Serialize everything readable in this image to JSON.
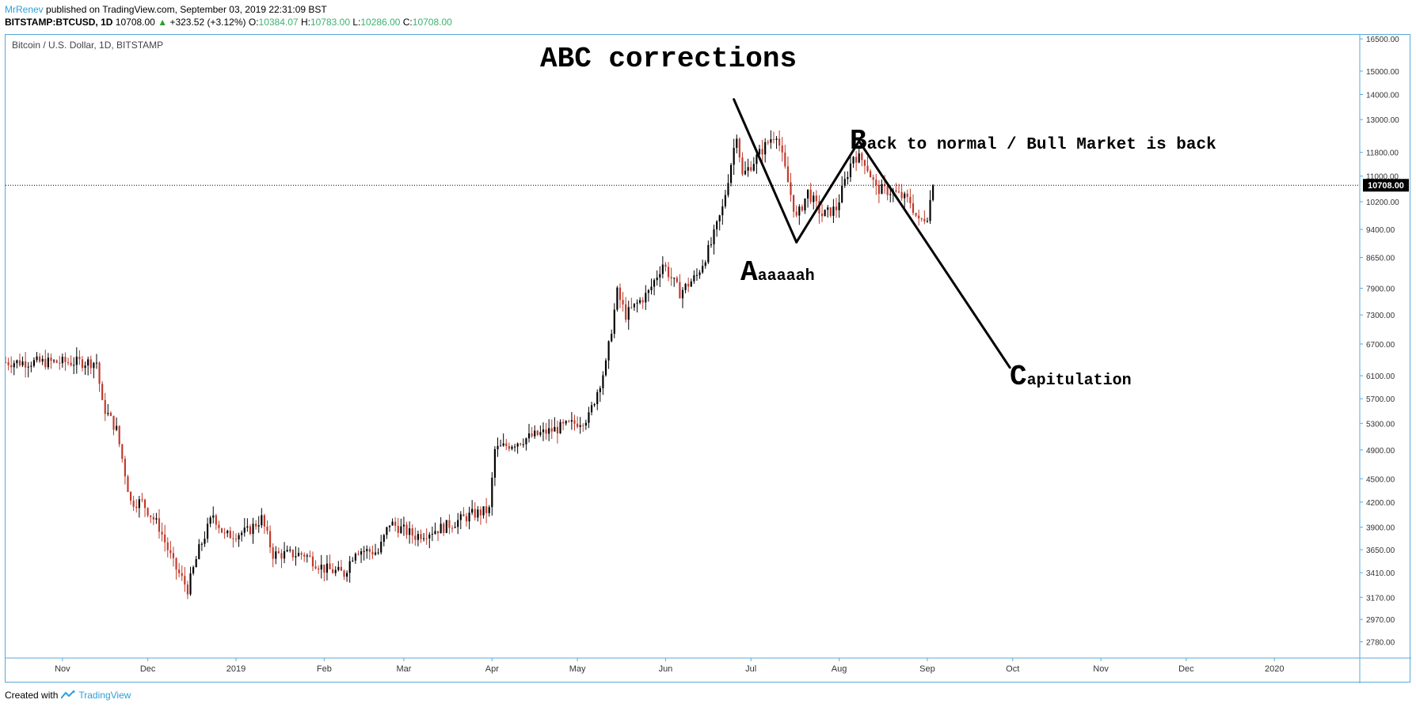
{
  "header": {
    "author": "MrRenev",
    "published": "published on TradingView.com, September 03, 2019 22:31:09 BST",
    "symbol": "BITSTAMP:BTCUSD, 1D",
    "last": "10708.00",
    "arrow": "▲",
    "change": "+323.52 (+3.12%)",
    "o_label": "O:",
    "o": "10384.07",
    "h_label": "H:",
    "h": "10783.00",
    "l_label": "L:",
    "l": "10286.00",
    "c_label": "C:",
    "c": "10708.00"
  },
  "footer": {
    "created": "Created with",
    "brand": "TradingView"
  },
  "colors": {
    "up": "#000000",
    "down": "#c0392b",
    "border": "#5aa9d6",
    "price_tag": "#000000"
  },
  "chart_data": {
    "type": "candlestick",
    "title": "Bitcoin / U.S. Dollar, 1D, BITSTAMP",
    "y_scale": "log",
    "ylim": [
      2650,
      16700
    ],
    "y_ticks": [
      "16500.00",
      "15000.00",
      "14000.00",
      "13000.00",
      "11800.00",
      "11000.00",
      "10200.00",
      "9400.00",
      "8650.00",
      "7900.00",
      "7300.00",
      "6700.00",
      "6100.00",
      "5700.00",
      "5300.00",
      "4900.00",
      "4500.00",
      "4200.00",
      "3900.00",
      "3650.00",
      "3410.00",
      "3170.00",
      "2970.00",
      "2780.00"
    ],
    "x_ticks": [
      "Nov",
      "Dec",
      "2019",
      "Feb",
      "Mar",
      "Apr",
      "May",
      "Jun",
      "Jul",
      "Aug",
      "Sep",
      "Oct",
      "Nov",
      "Dec",
      "2020"
    ],
    "x_range": [
      "2018-10-12",
      "2020-01-31"
    ],
    "current_price": "10708.00",
    "price_path": [
      [
        "2018-10-12",
        6350
      ],
      [
        "2018-11-13",
        6350
      ],
      [
        "2018-11-15",
        5600
      ],
      [
        "2018-11-20",
        5200
      ],
      [
        "2018-11-25",
        4200
      ],
      [
        "2018-11-29",
        4200
      ],
      [
        "2018-12-05",
        3900
      ],
      [
        "2018-12-10",
        3500
      ],
      [
        "2018-12-15",
        3250
      ],
      [
        "2018-12-19",
        3650
      ],
      [
        "2018-12-24",
        4050
      ],
      [
        "2018-12-28",
        3800
      ],
      [
        "2019-01-05",
        3850
      ],
      [
        "2019-01-10",
        4000
      ],
      [
        "2019-01-14",
        3600
      ],
      [
        "2019-01-25",
        3600
      ],
      [
        "2019-02-01",
        3450
      ],
      [
        "2019-02-08",
        3400
      ],
      [
        "2019-02-12",
        3650
      ],
      [
        "2019-02-20",
        3620
      ],
      [
        "2019-02-24",
        3950
      ],
      [
        "2019-03-05",
        3800
      ],
      [
        "2019-03-15",
        3900
      ],
      [
        "2019-03-25",
        4050
      ],
      [
        "2019-03-31",
        4100
      ],
      [
        "2019-04-02",
        4900
      ],
      [
        "2019-04-15",
        5100
      ],
      [
        "2019-04-30",
        5300
      ],
      [
        "2019-05-05",
        5400
      ],
      [
        "2019-05-11",
        6300
      ],
      [
        "2019-05-15",
        7800
      ],
      [
        "2019-05-18",
        7300
      ],
      [
        "2019-05-26",
        7800
      ],
      [
        "2019-05-31",
        8500
      ],
      [
        "2019-06-06",
        7800
      ],
      [
        "2019-06-12",
        8200
      ],
      [
        "2019-06-17",
        9000
      ],
      [
        "2019-06-21",
        10000
      ],
      [
        "2019-06-26",
        12500
      ],
      [
        "2019-06-28",
        11000
      ],
      [
        "2019-07-02",
        11500
      ],
      [
        "2019-07-08",
        12300
      ],
      [
        "2019-07-10",
        12500
      ],
      [
        "2019-07-14",
        10800
      ],
      [
        "2019-07-17",
        9700
      ],
      [
        "2019-07-21",
        10500
      ],
      [
        "2019-07-26",
        9800
      ],
      [
        "2019-07-31",
        10000
      ],
      [
        "2019-08-06",
        11700
      ],
      [
        "2019-08-10",
        11500
      ],
      [
        "2019-08-14",
        10600
      ],
      [
        "2019-08-20",
        10500
      ],
      [
        "2019-08-26",
        10200
      ],
      [
        "2019-08-29",
        9600
      ],
      [
        "2019-09-01",
        9800
      ],
      [
        "2019-09-03",
        10708
      ]
    ]
  },
  "annotations": {
    "title": "ABC corrections",
    "a_big": "A",
    "a_rest": "aaaaah",
    "b_big": "B",
    "b_rest": "ack to normal / Bull Market is back",
    "c_big": "C",
    "c_rest": "apitulation",
    "lines": [
      [
        [
          "2019-06-25",
          13800
        ],
        [
          "2019-07-17",
          9050
        ]
      ],
      [
        [
          "2019-07-17",
          9050
        ],
        [
          "2019-08-08",
          12200
        ]
      ],
      [
        [
          "2019-08-08",
          12200
        ],
        [
          "2019-09-30",
          6250
        ]
      ]
    ]
  }
}
